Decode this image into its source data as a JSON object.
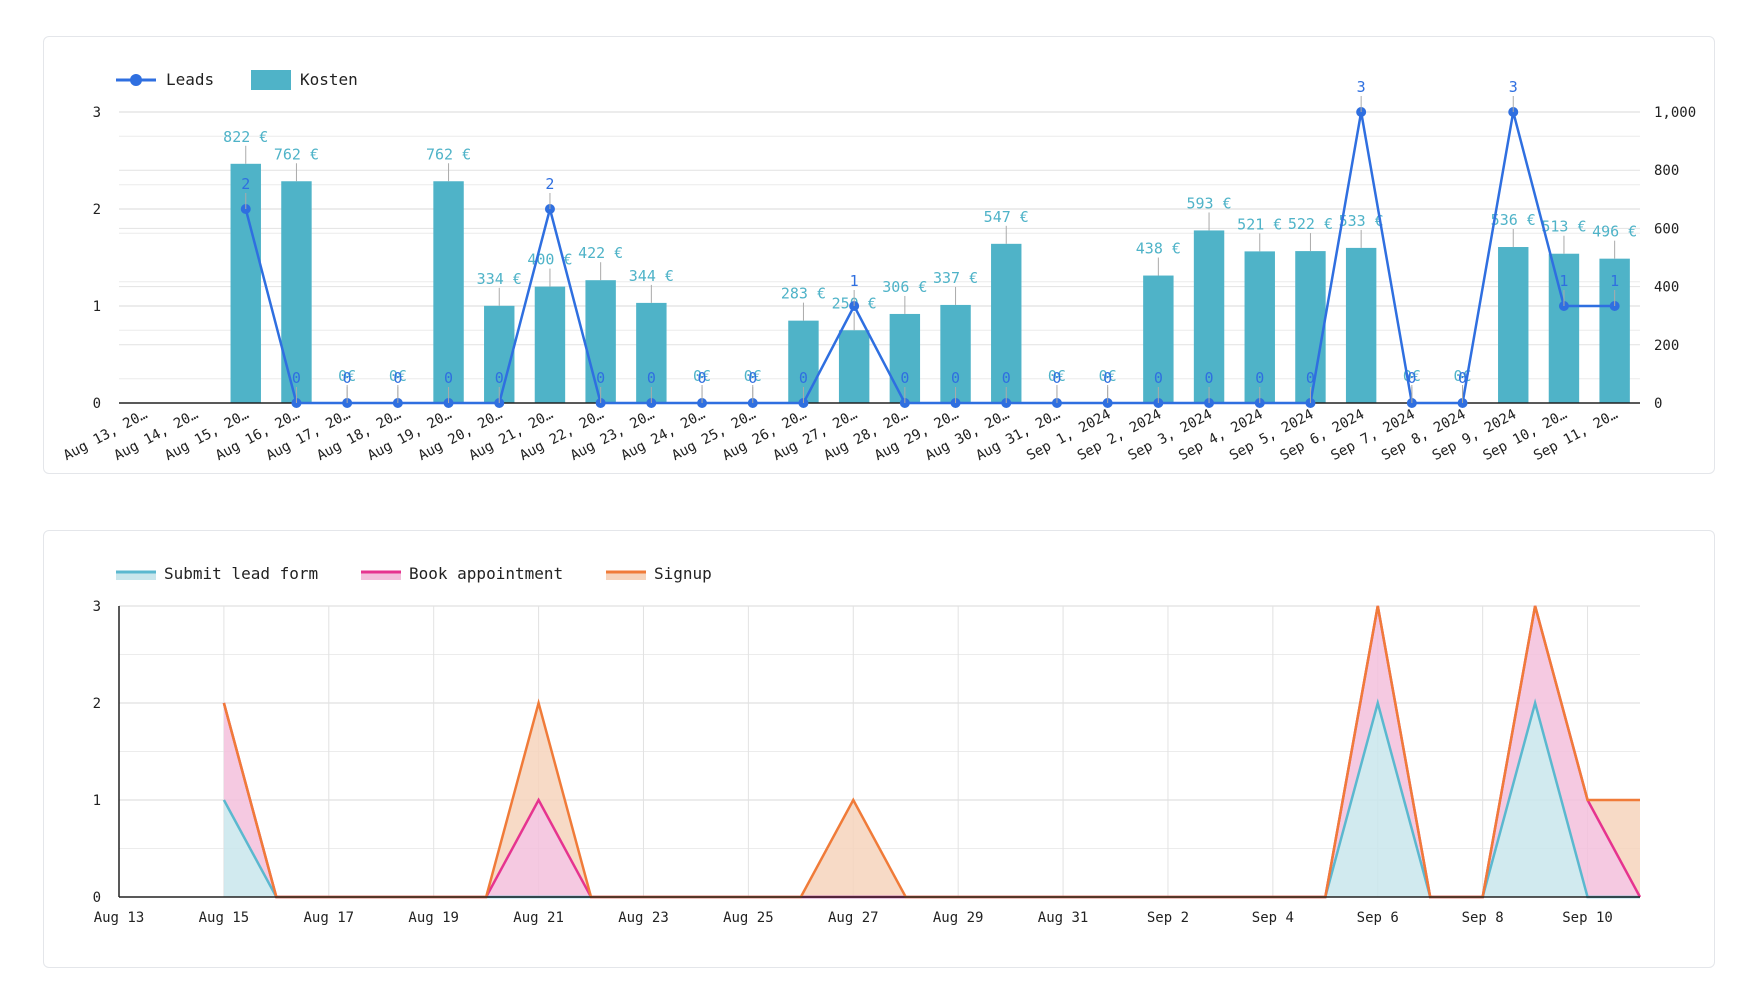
{
  "charts": [
    {
      "id": "combo",
      "chart_data": {
        "type": "bar",
        "categories": [
          "Aug 13, 20…",
          "Aug 14, 20…",
          "Aug 15, 20…",
          "Aug 16, 20…",
          "Aug 17, 20…",
          "Aug 18, 20…",
          "Aug 19, 20…",
          "Aug 20, 20…",
          "Aug 21, 20…",
          "Aug 22, 20…",
          "Aug 23, 20…",
          "Aug 24, 20…",
          "Aug 25, 20…",
          "Aug 26, 20…",
          "Aug 27, 20…",
          "Aug 28, 20…",
          "Aug 29, 20…",
          "Aug 30, 20…",
          "Aug 31, 20…",
          "Sep 1, 2024",
          "Sep 2, 2024",
          "Sep 3, 2024",
          "Sep 4, 2024",
          "Sep 5, 2024",
          "Sep 6, 2024",
          "Sep 7, 2024",
          "Sep 8, 2024",
          "Sep 9, 2024",
          "Sep 10, 20…",
          "Sep 11, 20…"
        ],
        "series": [
          {
            "name": "Leads",
            "type": "line",
            "axis": "left",
            "color": "#2f6fe0",
            "values": [
              null,
              null,
              2,
              0,
              0,
              0,
              0,
              0,
              2,
              0,
              0,
              0,
              0,
              0,
              1,
              0,
              0,
              0,
              0,
              0,
              0,
              0,
              0,
              0,
              3,
              0,
              0,
              3,
              1,
              1
            ],
            "labels": [
              "",
              "",
              "2",
              "0",
              "0",
              "0",
              "0",
              "0",
              "2",
              "0",
              "0",
              "0",
              "0",
              "0",
              "1",
              "0",
              "0",
              "0",
              "0",
              "0",
              "0",
              "0",
              "0",
              "0",
              "3",
              "0",
              "0",
              "3",
              "1",
              "1"
            ]
          },
          {
            "name": "Kosten",
            "type": "bar",
            "axis": "right",
            "color": "#4fb3c8",
            "values": [
              null,
              null,
              822,
              762,
              0,
              0,
              762,
              334,
              400,
              422,
              344,
              0,
              0,
              283,
              250,
              306,
              337,
              547,
              0,
              0,
              438,
              593,
              521,
              522,
              533,
              0,
              0,
              536,
              513,
              496
            ],
            "labels": [
              "",
              "",
              "822 €",
              "762 €",
              "0€",
              "0€",
              "762 €",
              "334 €",
              "400 €",
              "422 €",
              "344 €",
              "0€",
              "0€",
              "283 €",
              "250 €",
              "306 €",
              "337 €",
              "547 €",
              "0€",
              "0€",
              "438 €",
              "593 €",
              "521 €",
              "522 €",
              "533 €",
              "0€",
              "0€",
              "536 €",
              "513 €",
              "496 €"
            ]
          }
        ],
        "left_axis": {
          "ylim": [
            0,
            3
          ],
          "ticks": [
            "0",
            "1",
            "2",
            "3"
          ]
        },
        "right_axis": {
          "ylim": [
            0,
            1000
          ],
          "ticks": [
            "0",
            "200",
            "400",
            "600",
            "800",
            "1,000"
          ]
        },
        "legend": {
          "position": "top-left",
          "entries": [
            "Leads",
            "Kosten"
          ]
        },
        "grid": true
      }
    },
    {
      "id": "area",
      "chart_data": {
        "type": "area",
        "stacked": true,
        "x": [
          "Aug 13",
          "Aug 14",
          "Aug 15",
          "Aug 16",
          "Aug 17",
          "Aug 18",
          "Aug 19",
          "Aug 20",
          "Aug 21",
          "Aug 22",
          "Aug 23",
          "Aug 24",
          "Aug 25",
          "Aug 26",
          "Aug 27",
          "Aug 28",
          "Aug 29",
          "Aug 30",
          "Aug 31",
          "Sep 1",
          "Sep 2",
          "Sep 3",
          "Sep 4",
          "Sep 5",
          "Sep 6",
          "Sep 7",
          "Sep 8",
          "Sep 9",
          "Sep 10",
          "Sep 11"
        ],
        "x_ticks": [
          "Aug 13",
          "Aug 15",
          "Aug 17",
          "Aug 19",
          "Aug 21",
          "Aug 23",
          "Aug 25",
          "Aug 27",
          "Aug 29",
          "Aug 31",
          "Sep 2",
          "Sep 4",
          "Sep 6",
          "Sep 8",
          "Sep 10"
        ],
        "series": [
          {
            "name": "Submit lead form",
            "color": "#5bb8cf",
            "fill": "#c9e6ec",
            "values": [
              null,
              null,
              1,
              0,
              0,
              0,
              0,
              0,
              0,
              0,
              0,
              0,
              0,
              0,
              0,
              0,
              0,
              0,
              0,
              0,
              0,
              0,
              0,
              0,
              2,
              0,
              0,
              2,
              0,
              0
            ]
          },
          {
            "name": "Book appointment",
            "color": "#e6348f",
            "fill": "#f3c0dc",
            "values": [
              null,
              null,
              1,
              0,
              0,
              0,
              0,
              0,
              1,
              0,
              0,
              0,
              0,
              0,
              0,
              0,
              0,
              0,
              0,
              0,
              0,
              0,
              0,
              0,
              1,
              0,
              0,
              1,
              1,
              0
            ]
          },
          {
            "name": "Signup",
            "color": "#f07b39",
            "fill": "#f6d4bc",
            "values": [
              null,
              null,
              0,
              0,
              0,
              0,
              0,
              0,
              1,
              0,
              0,
              0,
              0,
              0,
              1,
              0,
              0,
              0,
              0,
              0,
              0,
              0,
              0,
              0,
              0,
              0,
              0,
              0,
              0,
              1
            ]
          }
        ],
        "ylim": [
          0,
          3
        ],
        "y_ticks": [
          "0",
          "1",
          "2",
          "3"
        ],
        "legend": {
          "position": "top-left",
          "entries": [
            "Submit lead form",
            "Book appointment",
            "Signup"
          ]
        },
        "grid": true
      }
    }
  ]
}
